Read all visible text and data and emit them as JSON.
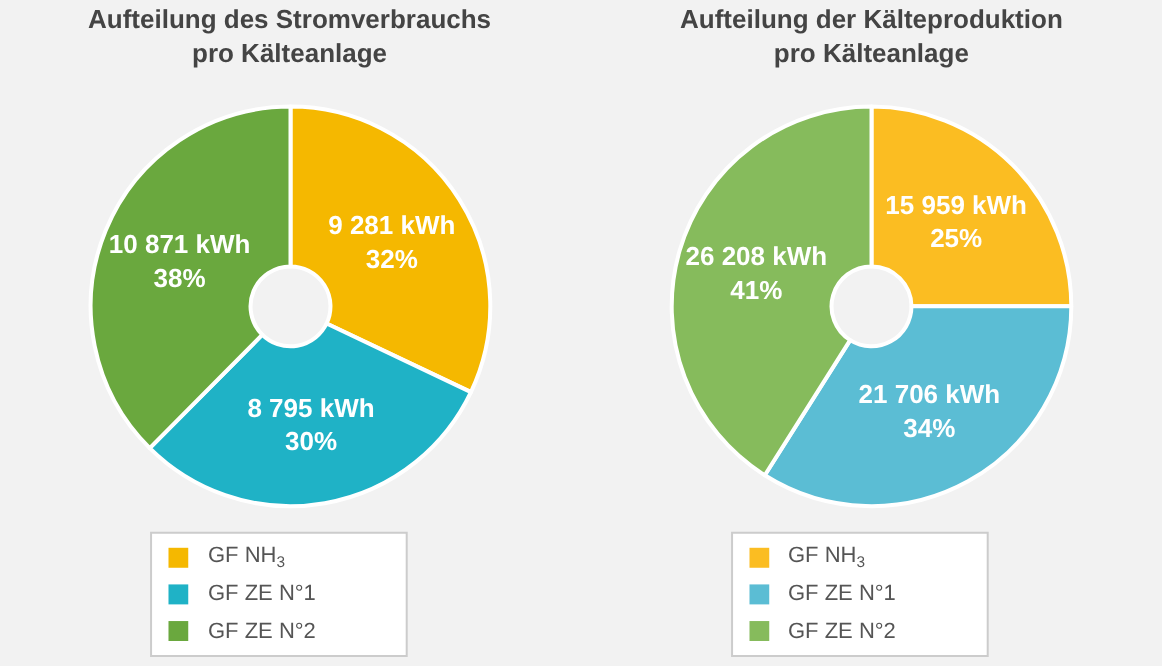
{
  "chart_data": [
    {
      "type": "donut",
      "title": "Aufteilung des Stromverbrauchs\npro Kälteanlage",
      "categories": [
        "GF NH$_{3}$",
        "GF ZE N°1",
        "GF ZE N°2"
      ],
      "values": [
        9281,
        8795,
        10871
      ],
      "colors": [
        "#f5b800",
        "#1fb2c6",
        "#6aa83e"
      ],
      "value_labels": [
        "9 281 kWh\n32%",
        "8 795 kWh\n30%",
        "10 871 kWh\n38%"
      ],
      "legend": "bottom"
    },
    {
      "type": "donut",
      "title": "Aufteilung der Kälteproduktion\npro Kälteanlage",
      "categories": [
        "GF NH$_{3}$",
        "GF ZE N°1",
        "GF ZE N°2"
      ],
      "values": [
        15959,
        21706,
        26208
      ],
      "colors": [
        "#fbbd22",
        "#5bbdd4",
        "#86bb5c"
      ],
      "value_labels": [
        "15 959 kWh\n25%",
        "21 706 kWh\n34%",
        "26 208 kWh\n41%"
      ],
      "legend": "bottom"
    }
  ]
}
